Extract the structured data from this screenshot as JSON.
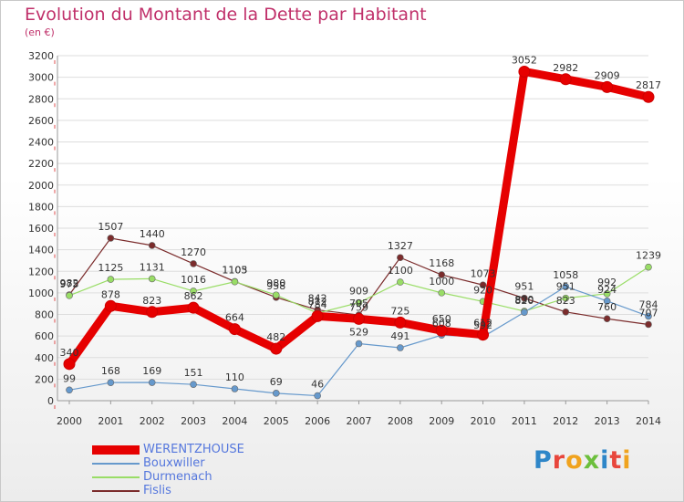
{
  "header": {
    "title": "Evolution du Montant de la Dette par Habitant",
    "subtitle": "(en €)"
  },
  "logo": {
    "text": "Proxiti",
    "colors": [
      "#2e86c8",
      "#e8463c",
      "#f0a31e",
      "#6cbf3c"
    ]
  },
  "chart_data": {
    "type": "line",
    "title": "Evolution du Montant de la Dette par Habitant",
    "ylabel": "(en €)",
    "xlabel": "",
    "x": [
      "2000",
      "2001",
      "2002",
      "2003",
      "2004",
      "2005",
      "2006",
      "2007",
      "2008",
      "2009",
      "2010",
      "2011",
      "2012",
      "2013",
      "2014"
    ],
    "ylim": [
      0,
      3200
    ],
    "yticks": [
      0,
      200,
      400,
      600,
      800,
      1000,
      1200,
      1400,
      1600,
      1800,
      2000,
      2200,
      2400,
      2600,
      2800,
      3000,
      3200
    ],
    "grid": "horizontal",
    "legend_position": "bottom-left",
    "series": [
      {
        "name": "WERENTZHOUSE",
        "color": "#e60000",
        "values": [
          340,
          878,
          823,
          862,
          664,
          482,
          784,
          759,
          725,
          650,
          612,
          3052,
          2982,
          2909,
          2817
        ],
        "labels": [
          "340",
          "878",
          "823",
          "862",
          "664",
          "482",
          "784",
          "759",
          "725",
          "650",
          "612",
          "3052",
          "2982",
          "2909",
          "2817"
        ]
      },
      {
        "name": "Bouxwiller",
        "color": "#6699cc",
        "values": [
          99,
          168,
          169,
          151,
          110,
          69,
          46,
          529,
          491,
          608,
          592,
          820,
          1058,
          924,
          784
        ],
        "labels": [
          "99",
          "168",
          "169",
          "151",
          "110",
          "69",
          "46",
          "529",
          "491",
          "608",
          "592",
          "820",
          "1058",
          "924",
          "784"
        ]
      },
      {
        "name": "Durmenach",
        "color": "#99dd66",
        "values": [
          975,
          1125,
          1131,
          1016,
          1103,
          980,
          812,
          909,
          1100,
          1000,
          920,
          830,
          951,
          992,
          1239
        ],
        "labels": [
          "975",
          "1125",
          "1131",
          "1016",
          "1103",
          "980",
          "812",
          "909",
          "1100",
          "1000",
          "920",
          "830",
          "951",
          "992",
          "1239"
        ]
      },
      {
        "name": "Fislis",
        "color": "#7b2c2c",
        "values": [
          982,
          1507,
          1440,
          1270,
          1105,
          958,
          842,
          795,
          1327,
          1168,
          1073,
          951,
          823,
          760,
          707
        ],
        "labels": [
          "982",
          "1507",
          "1440",
          "1270",
          "1105",
          "958",
          "842",
          "795",
          "1327",
          "1168",
          "1073",
          "951",
          "823",
          "760",
          "707"
        ]
      }
    ]
  }
}
